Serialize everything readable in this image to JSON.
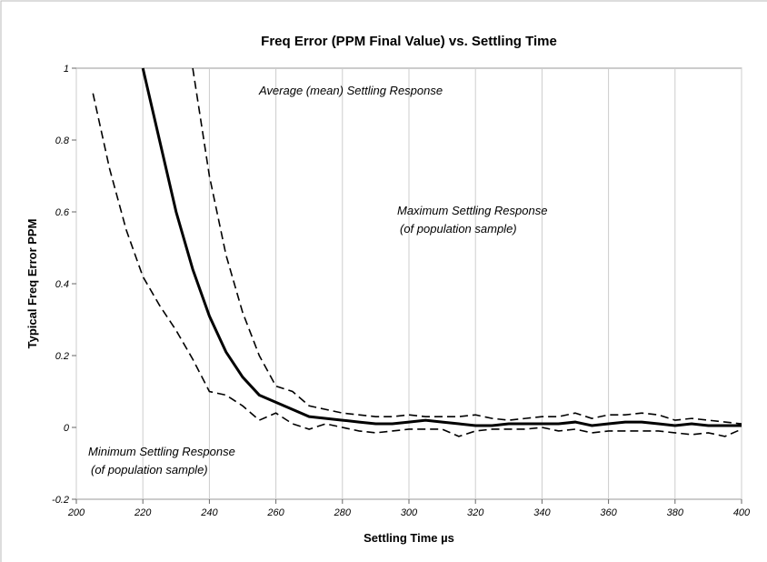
{
  "chart_data": {
    "type": "line",
    "title": "Freq Error (PPM Final Value) vs. Settling Time",
    "x_label": "Settling Time µs",
    "y_label": "Typical Freq Error PPM",
    "xlim": [
      200,
      400
    ],
    "xticks": [
      200,
      220,
      240,
      260,
      280,
      300,
      320,
      340,
      360,
      380,
      400
    ],
    "ylim": [
      -0.2,
      1
    ],
    "yticks": [
      -0.2,
      0,
      0.2,
      0.4,
      0.6,
      0.8,
      1
    ],
    "xgrid": true,
    "x": [
      200,
      205,
      210,
      215,
      220,
      225,
      230,
      235,
      240,
      245,
      250,
      255,
      260,
      265,
      270,
      275,
      280,
      285,
      290,
      295,
      300,
      305,
      310,
      315,
      320,
      325,
      330,
      335,
      340,
      345,
      350,
      355,
      360,
      365,
      370,
      375,
      380,
      385,
      390,
      395,
      400
    ],
    "series": [
      {
        "color": "#000000",
        "dashed": false,
        "values": [
          null,
          null,
          null,
          null,
          1.0,
          0.8,
          0.6,
          0.44,
          0.31,
          0.21,
          0.14,
          0.09,
          0.07,
          0.05,
          0.03,
          0.025,
          0.02,
          0.015,
          0.01,
          0.01,
          0.015,
          0.02,
          0.015,
          0.01,
          0.005,
          0.005,
          0.01,
          0.01,
          0.01,
          0.01,
          0.015,
          0.005,
          0.01,
          0.015,
          0.015,
          0.01,
          0.005,
          0.01,
          0.005,
          0.005,
          0.005
        ]
      },
      {
        "color": "#000000",
        "dashed": true,
        "values": [
          null,
          null,
          null,
          null,
          null,
          null,
          null,
          1.0,
          0.7,
          0.48,
          0.32,
          0.2,
          0.115,
          0.1,
          0.06,
          0.05,
          0.04,
          0.035,
          0.03,
          0.03,
          0.035,
          0.03,
          0.03,
          0.03,
          0.035,
          0.025,
          0.02,
          0.025,
          0.03,
          0.03,
          0.04,
          0.025,
          0.035,
          0.035,
          0.04,
          0.035,
          0.02,
          0.025,
          0.02,
          0.015,
          0.01
        ]
      },
      {
        "color": "#000000",
        "dashed": true,
        "values": [
          null,
          0.93,
          0.72,
          0.55,
          0.42,
          0.34,
          0.27,
          0.19,
          0.1,
          0.09,
          0.06,
          0.02,
          0.04,
          0.01,
          -0.005,
          0.01,
          0.0,
          -0.01,
          -0.015,
          -0.01,
          -0.005,
          -0.005,
          -0.005,
          -0.025,
          -0.01,
          -0.005,
          -0.005,
          -0.005,
          0.0,
          -0.01,
          -0.005,
          -0.015,
          -0.01,
          -0.01,
          -0.01,
          -0.01,
          -0.015,
          -0.02,
          -0.015,
          -0.025,
          -0.005
        ]
      }
    ],
    "annotations": [
      {
        "lines": [
          "Average (mean) Settling Response"
        ]
      },
      {
        "lines": [
          "Maximum Settling Response",
          "(of population sample)"
        ]
      },
      {
        "lines": [
          "Minimum Settling Response",
          "(of population sample)"
        ]
      }
    ]
  }
}
